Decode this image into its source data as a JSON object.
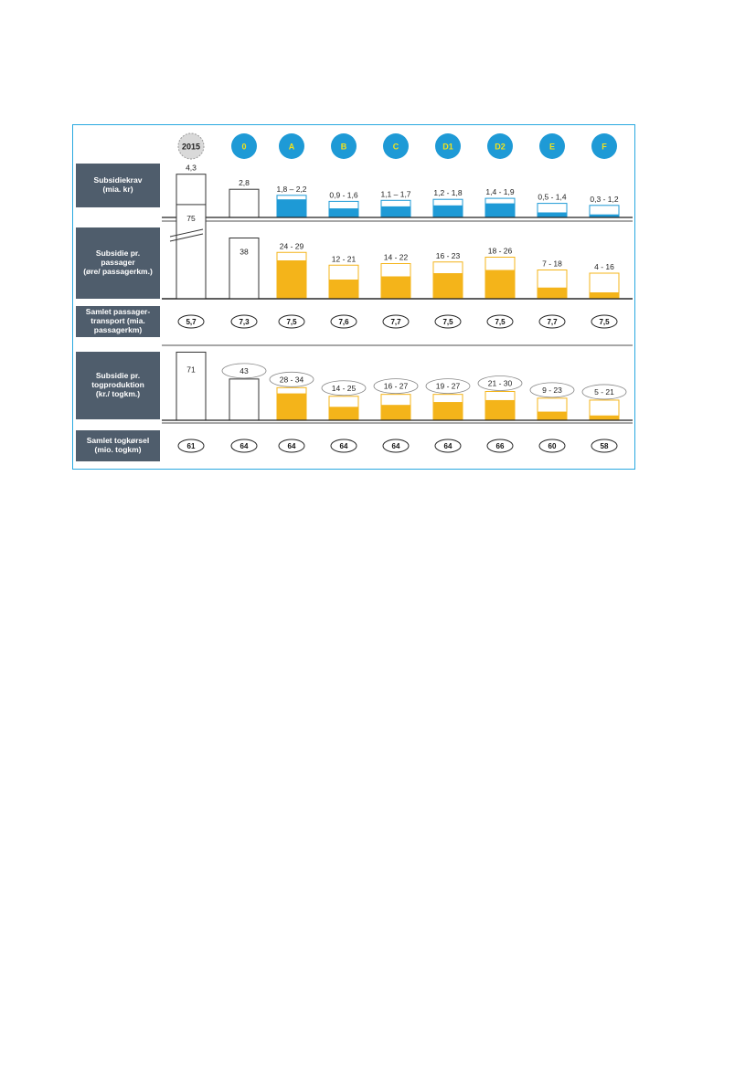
{
  "colors": {
    "frame": "#29a8e0",
    "blue": "#1e9ad6",
    "orange": "#f4b41a",
    "label_bg": "#4f5d6c",
    "header_grey": "#d9d9d9"
  },
  "headers": [
    "2015",
    "0",
    "A",
    "B",
    "C",
    "D1",
    "D2",
    "E",
    "F"
  ],
  "row_labels": {
    "subsidiekrav": "Subsidiekrav\n(mia. kr)",
    "subsidie_passager": "Subsidie pr.\npassager\n(øre/ passagerkm.)",
    "samlet_passager": "Samlet passager-\ntransport (mia.\npassagerkm)",
    "subsidie_tog": "Subsidie pr.\ntogproduktion\n(kr./ togkm.)",
    "samlet_tog": "Samlet togkørsel\n(mio. togkm)"
  },
  "chart_data": [
    {
      "type": "bar",
      "title": "Subsidiekrav",
      "categories": [
        "2015",
        "0",
        "A",
        "B",
        "C",
        "D1",
        "D2",
        "E",
        "F"
      ],
      "labels": [
        "4,3",
        "2,8",
        "1,8 – 2,2",
        "0,9 - 1,6",
        "1,1 – 1,7",
        "1,2 - 1,8",
        "1,4 - 1,9",
        "0,5 - 1,4",
        "0,3 - 1,2"
      ],
      "low": [
        4.3,
        2.8,
        1.8,
        0.9,
        1.1,
        1.2,
        1.4,
        0.5,
        0.3
      ],
      "high": [
        4.3,
        2.8,
        2.2,
        1.6,
        1.7,
        1.8,
        1.9,
        1.4,
        1.2
      ]
    },
    {
      "type": "bar",
      "title": "Subsidie pr. passager",
      "categories": [
        "2015",
        "0",
        "A",
        "B",
        "C",
        "D1",
        "D2",
        "E",
        "F"
      ],
      "labels": [
        "75",
        "38",
        "24 - 29",
        "12 - 21",
        "14 - 22",
        "16 - 23",
        "18 - 26",
        "7 - 18",
        "4 - 16"
      ],
      "low": [
        75,
        38,
        24,
        12,
        14,
        16,
        18,
        7,
        4
      ],
      "high": [
        75,
        38,
        29,
        21,
        22,
        23,
        26,
        18,
        16
      ]
    },
    {
      "type": "table",
      "title": "Samlet passagertransport",
      "categories": [
        "2015",
        "0",
        "A",
        "B",
        "C",
        "D1",
        "D2",
        "E",
        "F"
      ],
      "values": [
        "5,7",
        "7,3",
        "7,5",
        "7,6",
        "7,7",
        "7,5",
        "7,5",
        "7,7",
        "7,5"
      ]
    },
    {
      "type": "bar",
      "title": "Subsidie pr. togproduktion",
      "categories": [
        "2015",
        "0",
        "A",
        "B",
        "C",
        "D1",
        "D2",
        "E",
        "F"
      ],
      "labels": [
        "71",
        "43",
        "28 - 34",
        "14 - 25",
        "16 - 27",
        "19 - 27",
        "21 - 30",
        "9 - 23",
        "5 - 21"
      ],
      "low": [
        71,
        43,
        28,
        14,
        16,
        19,
        21,
        9,
        5
      ],
      "high": [
        71,
        43,
        34,
        25,
        27,
        27,
        30,
        23,
        21
      ]
    },
    {
      "type": "table",
      "title": "Samlet togkørsel",
      "categories": [
        "2015",
        "0",
        "A",
        "B",
        "C",
        "D1",
        "D2",
        "E",
        "F"
      ],
      "values": [
        "61",
        "64",
        "64",
        "64",
        "64",
        "64",
        "66",
        "60",
        "58"
      ]
    }
  ]
}
